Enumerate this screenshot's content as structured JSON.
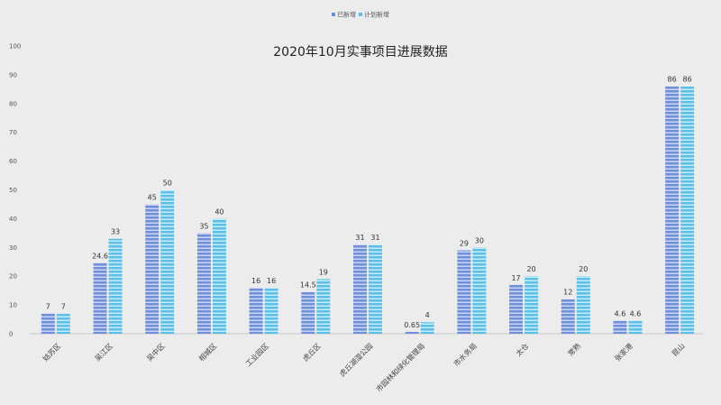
{
  "chart_data": {
    "type": "bar",
    "title": "2020年10月实事项目进展数据",
    "xlabel": "",
    "ylabel": "",
    "ylim": [
      0,
      100
    ],
    "yticks": [
      0,
      10,
      20,
      30,
      40,
      50,
      60,
      70,
      80,
      90,
      100
    ],
    "grid": false,
    "legend_position": "top-center",
    "categories": [
      "姑苏区",
      "吴江区",
      "吴中区",
      "相城区",
      "工业园区",
      "虎丘区",
      "虎丘湖湿公园",
      "市园林和绿化管理局",
      "市水务局",
      "太仓",
      "常熟",
      "张家港",
      "昆山"
    ],
    "series": [
      {
        "name": "已新增",
        "color": "#6f8fd8",
        "values": [
          7,
          24.6,
          45,
          35,
          16,
          14.5,
          31,
          0.65,
          29,
          17,
          12,
          4.6,
          86
        ]
      },
      {
        "name": "计划新增",
        "color": "#5cc0e6",
        "values": [
          7,
          33,
          50,
          40,
          16,
          19,
          31,
          4,
          30,
          20,
          20,
          4.6,
          86
        ]
      }
    ]
  }
}
